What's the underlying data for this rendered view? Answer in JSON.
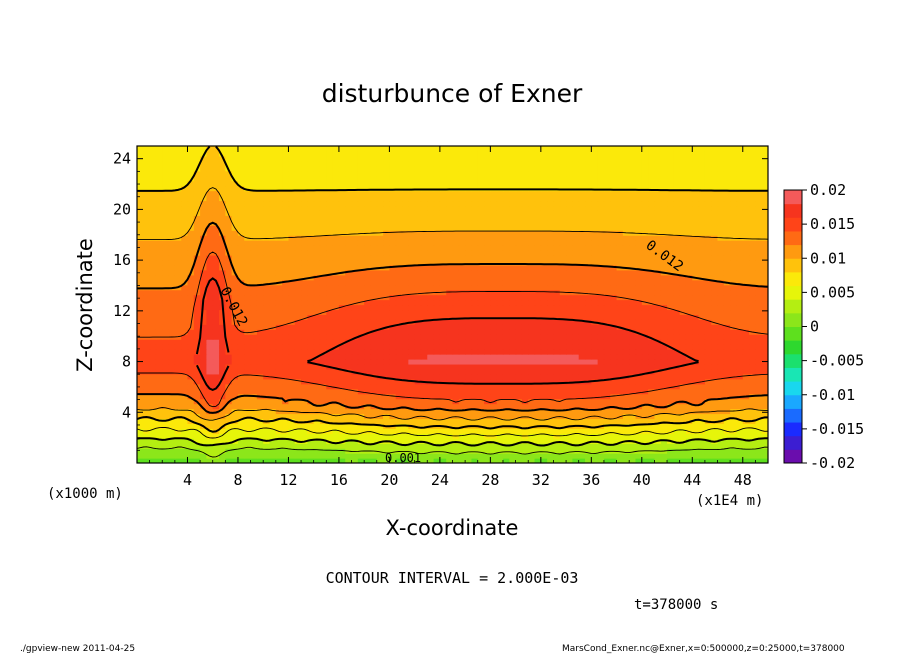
{
  "chart_data": {
    "type": "heatmap",
    "title": "disturbunce of Exner",
    "xlabel": "X-coordinate",
    "ylabel": "Z-coordinate",
    "x_unit_label": "(x1E4 m)",
    "y_unit_label": "(x1000 m)",
    "x_ticks": [
      "4",
      "8",
      "12",
      "16",
      "20",
      "24",
      "28",
      "32",
      "36",
      "40",
      "44",
      "48"
    ],
    "x_tick_values": [
      4,
      8,
      12,
      16,
      20,
      24,
      28,
      32,
      36,
      40,
      44,
      48
    ],
    "y_ticks": [
      "4",
      "8",
      "12",
      "16",
      "20",
      "24"
    ],
    "y_tick_values": [
      4,
      8,
      12,
      16,
      20,
      24
    ],
    "xlim": [
      0,
      50
    ],
    "ylim": [
      0,
      25
    ],
    "colorbar": {
      "labels": [
        "0.02",
        "0.015",
        "0.01",
        "0.005",
        "0",
        "-0.005",
        "-0.01",
        "-0.015",
        "-0.02"
      ],
      "range": [
        -0.02,
        0.02
      ],
      "levels": [
        -0.02,
        -0.018,
        -0.016,
        -0.014,
        -0.012,
        -0.01,
        -0.008,
        -0.006,
        -0.004,
        -0.002,
        0,
        0.002,
        0.004,
        0.006,
        0.008,
        0.01,
        0.012,
        0.014,
        0.016,
        0.018,
        0.02
      ],
      "colors": [
        "#6a0dad",
        "#3c1ed2",
        "#1a2bff",
        "#1a6bff",
        "#1aa8ff",
        "#19d7ee",
        "#19e6b4",
        "#1be06e",
        "#2ed82e",
        "#5ee01e",
        "#8ce61a",
        "#b4ee12",
        "#e6f50a",
        "#fbe90a",
        "#ffc20c",
        "#ff9a10",
        "#ff6a14",
        "#ff4418",
        "#f6341e",
        "#f45a5a"
      ]
    },
    "contour_labels": [
      "0.012",
      "0.012",
      "0.001"
    ],
    "contour_interval": 0.002
  },
  "annotations": {
    "contour_interval_text": "CONTOUR INTERVAL = 2.000E-03",
    "time_text": "t=378000 s",
    "footer_left": "./gpview-new  2011-04-25",
    "footer_right": "MarsCond_Exner.nc@Exner,x=0:500000,z=0:25000,t=378000"
  }
}
